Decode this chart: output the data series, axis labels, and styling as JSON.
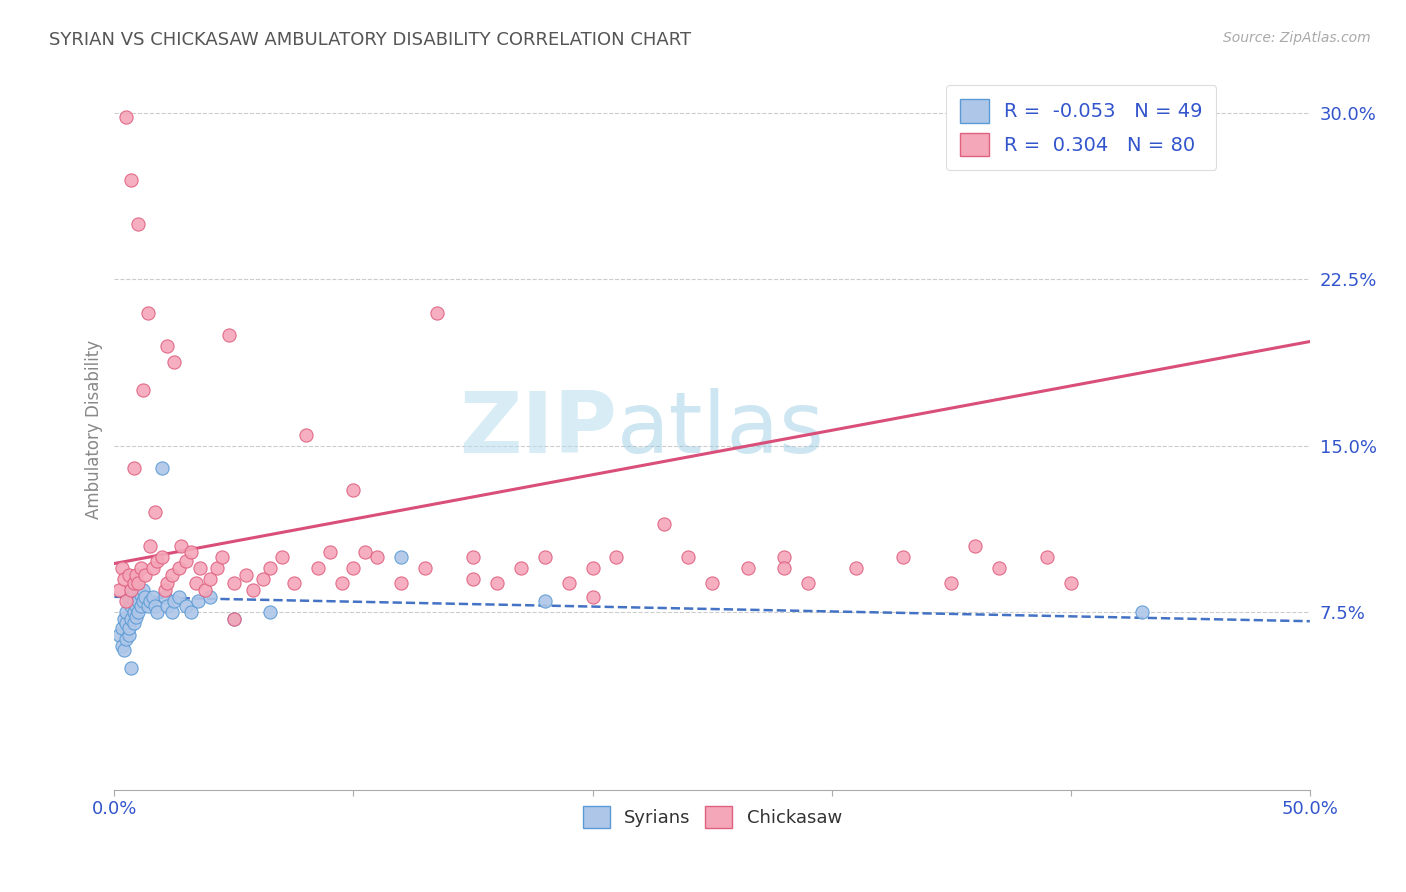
{
  "title": "SYRIAN VS CHICKASAW AMBULATORY DISABILITY CORRELATION CHART",
  "source": "Source: ZipAtlas.com",
  "ylabel": "Ambulatory Disability",
  "xlim": [
    0.0,
    0.5
  ],
  "ylim": [
    -0.005,
    0.32
  ],
  "yticks": [
    0.075,
    0.15,
    0.225,
    0.3
  ],
  "ytick_labels": [
    "7.5%",
    "15.0%",
    "22.5%",
    "30.0%"
  ],
  "xticks": [
    0.0,
    0.1,
    0.2,
    0.3,
    0.4,
    0.5
  ],
  "xtick_labels": [
    "0.0%",
    "",
    "",
    "",
    "",
    "50.0%"
  ],
  "R_syrian": -0.053,
  "N_syrian": 49,
  "R_chickasaw": 0.304,
  "N_chickasaw": 80,
  "color_syrian": "#aec6e8",
  "color_chickasaw": "#f4a7b9",
  "edge_color_syrian": "#5b9bd5",
  "edge_color_chickasaw": "#e06080",
  "line_color_syrian": "#4472c4",
  "line_color_chickasaw": "#d94f7a",
  "watermark_color": "#daeef8",
  "background_color": "#ffffff",
  "grid_color": "#cccccc",
  "title_color": "#555555",
  "axis_color": "#3355cc",
  "legend_label_color": "#3355cc",
  "syrian_line_start_y": 0.082,
  "syrian_line_end_y": 0.071,
  "chickasaw_line_start_y": 0.097,
  "chickasaw_line_end_y": 0.197,
  "syrian_points_x": [
    0.002,
    0.003,
    0.003,
    0.004,
    0.004,
    0.005,
    0.005,
    0.005,
    0.006,
    0.006,
    0.006,
    0.007,
    0.007,
    0.007,
    0.008,
    0.008,
    0.008,
    0.008,
    0.009,
    0.009,
    0.01,
    0.01,
    0.01,
    0.011,
    0.011,
    0.012,
    0.012,
    0.013,
    0.014,
    0.015,
    0.016,
    0.017,
    0.018,
    0.02,
    0.021,
    0.022,
    0.024,
    0.025,
    0.027,
    0.03,
    0.032,
    0.035,
    0.04,
    0.05,
    0.065,
    0.12,
    0.18,
    0.43,
    0.007
  ],
  "syrian_points_y": [
    0.065,
    0.06,
    0.068,
    0.058,
    0.072,
    0.063,
    0.07,
    0.075,
    0.065,
    0.08,
    0.068,
    0.072,
    0.078,
    0.082,
    0.07,
    0.075,
    0.08,
    0.085,
    0.073,
    0.078,
    0.075,
    0.08,
    0.085,
    0.078,
    0.083,
    0.08,
    0.085,
    0.082,
    0.078,
    0.08,
    0.082,
    0.078,
    0.075,
    0.14,
    0.082,
    0.078,
    0.075,
    0.08,
    0.082,
    0.078,
    0.075,
    0.08,
    0.082,
    0.072,
    0.075,
    0.1,
    0.08,
    0.075,
    0.05
  ],
  "chickasaw_points_x": [
    0.002,
    0.003,
    0.004,
    0.005,
    0.005,
    0.006,
    0.007,
    0.007,
    0.008,
    0.008,
    0.009,
    0.01,
    0.01,
    0.011,
    0.012,
    0.013,
    0.014,
    0.015,
    0.016,
    0.017,
    0.018,
    0.02,
    0.021,
    0.022,
    0.022,
    0.024,
    0.025,
    0.027,
    0.028,
    0.03,
    0.032,
    0.034,
    0.036,
    0.038,
    0.04,
    0.043,
    0.045,
    0.048,
    0.05,
    0.055,
    0.058,
    0.062,
    0.065,
    0.07,
    0.075,
    0.08,
    0.085,
    0.09,
    0.095,
    0.1,
    0.105,
    0.11,
    0.12,
    0.13,
    0.135,
    0.15,
    0.16,
    0.17,
    0.18,
    0.19,
    0.2,
    0.21,
    0.23,
    0.24,
    0.25,
    0.265,
    0.28,
    0.29,
    0.31,
    0.33,
    0.35,
    0.37,
    0.39,
    0.4,
    0.05,
    0.1,
    0.15,
    0.2,
    0.28,
    0.36
  ],
  "chickasaw_points_y": [
    0.085,
    0.095,
    0.09,
    0.08,
    0.298,
    0.092,
    0.085,
    0.27,
    0.088,
    0.14,
    0.092,
    0.088,
    0.25,
    0.095,
    0.175,
    0.092,
    0.21,
    0.105,
    0.095,
    0.12,
    0.098,
    0.1,
    0.085,
    0.088,
    0.195,
    0.092,
    0.188,
    0.095,
    0.105,
    0.098,
    0.102,
    0.088,
    0.095,
    0.085,
    0.09,
    0.095,
    0.1,
    0.2,
    0.088,
    0.092,
    0.085,
    0.09,
    0.095,
    0.1,
    0.088,
    0.155,
    0.095,
    0.102,
    0.088,
    0.095,
    0.102,
    0.1,
    0.088,
    0.095,
    0.21,
    0.1,
    0.088,
    0.095,
    0.1,
    0.088,
    0.095,
    0.1,
    0.115,
    0.1,
    0.088,
    0.095,
    0.1,
    0.088,
    0.095,
    0.1,
    0.088,
    0.095,
    0.1,
    0.088,
    0.072,
    0.13,
    0.09,
    0.082,
    0.095,
    0.105
  ]
}
